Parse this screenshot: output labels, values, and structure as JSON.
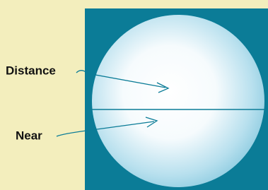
{
  "labels": {
    "distance": "Distance",
    "near": "Near"
  }
}
